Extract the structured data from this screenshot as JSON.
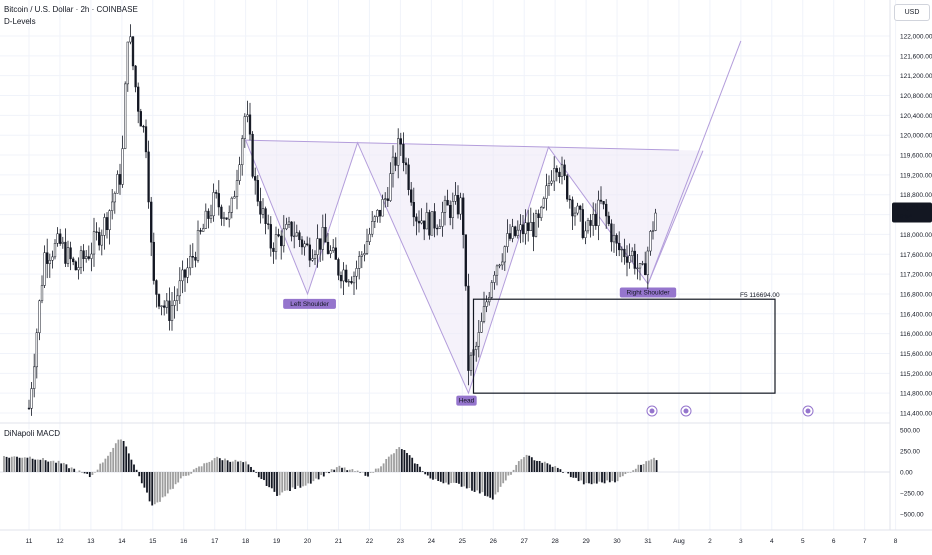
{
  "header": {
    "title": "Bitcoin / U.S. Dollar · 2h · COINBASE",
    "indicator": "D-Levels",
    "macd_label": "DiNapoli MACD",
    "currency": "USD"
  },
  "price_axis": {
    "ticks": [
      "122,000.00",
      "121,600.00",
      "121,200.00",
      "120,800.00",
      "120,400.00",
      "120,000.00",
      "119,600.00",
      "119,200.00",
      "118,800.00",
      "118,400.00",
      "118,000.00",
      "117,600.00",
      "117,200.00",
      "116,800.00",
      "116,400.00",
      "116,000.00",
      "115,600.00",
      "115,200.00",
      "114,800.00",
      "114,400.00"
    ],
    "current_price": "118,521.39",
    "countdown": "16:54"
  },
  "macd_axis": {
    "ticks": [
      "500.00",
      "250.00",
      "0.00",
      "−250.00",
      "−500.00"
    ]
  },
  "time_axis": {
    "ticks": [
      "11",
      "12",
      "13",
      "14",
      "15",
      "16",
      "17",
      "18",
      "19",
      "20",
      "21",
      "22",
      "23",
      "24",
      "25",
      "26",
      "27",
      "28",
      "29",
      "30",
      "31",
      "Aug",
      "2",
      "3",
      "4",
      "5",
      "6",
      "7",
      "8"
    ]
  },
  "annotations": {
    "left_shoulder": "Left Shoulder",
    "head": "Head",
    "right_shoulder": "Right Shoulder",
    "target": "F5  116694.00"
  },
  "colors": {
    "candle": "#131722",
    "pattern": "#b39ddb",
    "pattern_fill": "#ede7f6",
    "macd_pos": "#9e9e9e",
    "macd_neg": "#131722",
    "label_bg": "#9575cd"
  },
  "chart_data": {
    "type": "candlestick",
    "title": "Bitcoin / U.S. Dollar · 2h · COINBASE",
    "ylim": [
      114200,
      122300
    ],
    "close_path": [
      {
        "x": "11",
        "y": 114500
      },
      {
        "x": "11.5",
        "y": 117600
      },
      {
        "x": "12",
        "y": 117800
      },
      {
        "x": "12.5",
        "y": 117300
      },
      {
        "x": "13",
        "y": 117700
      },
      {
        "x": "13.5",
        "y": 118300
      },
      {
        "x": "14",
        "y": 119300
      },
      {
        "x": "14.2",
        "y": 122200
      },
      {
        "x": "14.5",
        "y": 120700
      },
      {
        "x": "14.8",
        "y": 119800
      },
      {
        "x": "15",
        "y": 117000
      },
      {
        "x": "15.5",
        "y": 116400
      },
      {
        "x": "16",
        "y": 117100
      },
      {
        "x": "16.5",
        "y": 117900
      },
      {
        "x": "17",
        "y": 118700
      },
      {
        "x": "17.5",
        "y": 118300
      },
      {
        "x": "18",
        "y": 120500
      },
      {
        "x": "18.3",
        "y": 119000
      },
      {
        "x": "18.8",
        "y": 117800
      },
      {
        "x": "19.5",
        "y": 118100
      },
      {
        "x": "20",
        "y": 117700
      },
      {
        "x": "20.5",
        "y": 117900
      },
      {
        "x": "21",
        "y": 117300
      },
      {
        "x": "21.5",
        "y": 117200
      },
      {
        "x": "22",
        "y": 118000
      },
      {
        "x": "22.5",
        "y": 118700
      },
      {
        "x": "23",
        "y": 119900
      },
      {
        "x": "23.5",
        "y": 118400
      },
      {
        "x": "24",
        "y": 118200
      },
      {
        "x": "24.5",
        "y": 118500
      },
      {
        "x": "25",
        "y": 118600
      },
      {
        "x": "25.2",
        "y": 115300
      },
      {
        "x": "25.5",
        "y": 115800
      },
      {
        "x": "26",
        "y": 117300
      },
      {
        "x": "26.5",
        "y": 117900
      },
      {
        "x": "27",
        "y": 118100
      },
      {
        "x": "27.5",
        "y": 118200
      },
      {
        "x": "28",
        "y": 119600
      },
      {
        "x": "28.5",
        "y": 118700
      },
      {
        "x": "29",
        "y": 118000
      },
      {
        "x": "29.5",
        "y": 118600
      },
      {
        "x": "30",
        "y": 117700
      },
      {
        "x": "30.5",
        "y": 117600
      },
      {
        "x": "30.8",
        "y": 117100
      },
      {
        "x": "31",
        "y": 117700
      },
      {
        "x": "31.3",
        "y": 118600
      }
    ],
    "pattern": {
      "left_shoulder": {
        "x": "20",
        "y": 116800
      },
      "head": {
        "x": "25.2",
        "y": 114800
      },
      "right_shoulder": {
        "x": "31",
        "y": 117000
      },
      "neckline_start": {
        "x": "18",
        "y": 119900
      },
      "neckline_end": {
        "x": "Aug",
        "y": 119700
      },
      "projection_end": {
        "x": "3",
        "y": 121900
      },
      "target_level": 116694.0
    },
    "macd": {
      "x": [
        "11",
        "12",
        "13",
        "14",
        "15",
        "16",
        "17",
        "18",
        "19",
        "20",
        "21",
        "22",
        "23",
        "24",
        "25",
        "26",
        "27",
        "28",
        "29",
        "30",
        "31"
      ],
      "values": [
        180,
        110,
        -60,
        420,
        -420,
        -60,
        170,
        110,
        -270,
        -140,
        60,
        -40,
        300,
        -90,
        -160,
        -310,
        200,
        60,
        -150,
        -100,
        150
      ]
    }
  }
}
